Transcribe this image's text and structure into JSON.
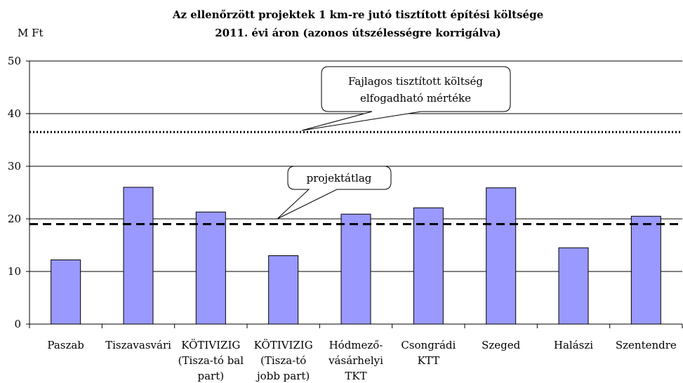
{
  "chart_data": {
    "type": "bar",
    "title": [
      "Az ellenőrzött projektek 1 km-re jutó tisztított építési költsége",
      "2011. évi áron (azonos útszélességre korrigálva)"
    ],
    "y_axis_label": "M Ft",
    "categories": [
      "Paszab",
      "Tiszavasvári",
      "KÖTIVIZIG\n(Tisza-tó bal\npart)",
      "KÖTIVIZIG\n(Tisza-tó\njobb part)",
      "Hódmező-\nvásárhelyi\nTKT",
      "Csongrádi\nKTT",
      "Szeged",
      "Halászi",
      "Szentendre"
    ],
    "values": [
      12.2,
      26,
      21.3,
      13,
      20.9,
      22.1,
      25.9,
      14.5,
      20.5
    ],
    "color": "#9999ff",
    "ylim": [
      0,
      50
    ],
    "yticks": [
      0,
      10,
      20,
      30,
      40,
      50
    ],
    "grid": true,
    "reference_lines": [
      {
        "label": "Fajlagos tisztított költség\nelfogadható mértéke",
        "value": 36.5,
        "style": "dotted"
      },
      {
        "label": "projektátlag",
        "value": 19,
        "style": "dashed"
      }
    ]
  }
}
